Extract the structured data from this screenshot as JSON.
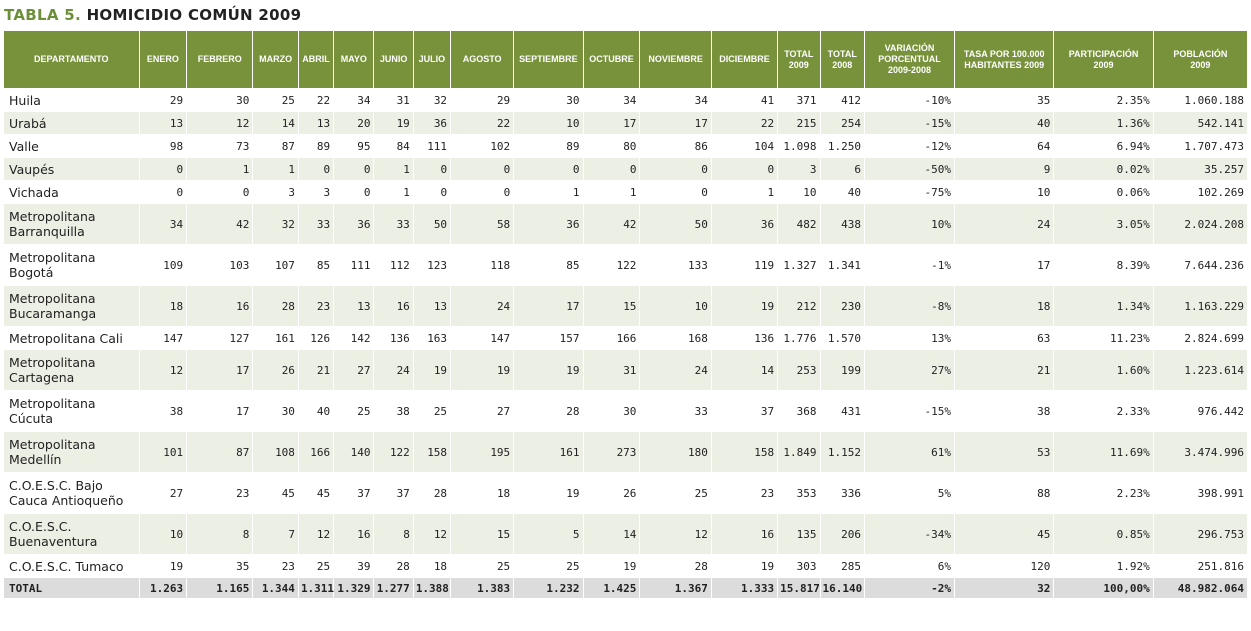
{
  "title": {
    "prefix": "TABLA 5.",
    "name": "HOMICIDIO COMÚN 2009"
  },
  "headers": {
    "departamento": "DEPARTAMENTO",
    "enero": "ENERO",
    "febrero": "FEBRERO",
    "marzo": "MARZO",
    "abril": "ABRIL",
    "mayo": "MAYO",
    "junio": "JUNIO",
    "julio": "JULIO",
    "agosto": "AGOSTO",
    "septiembre": "SEPTIEMBRE",
    "octubre": "OCTUBRE",
    "noviembre": "NOVIEMBRE",
    "diciembre": "DICIEMBRE",
    "total2009_l1": "TOTAL",
    "total2009_l2": "2009",
    "total2008_l1": "TOTAL",
    "total2008_l2": "2008",
    "variacion_l1": "VARIACIÓN",
    "variacion_l2": "PORCENTUAL",
    "variacion_l3": "2009-2008",
    "tasa_l1": "TASA POR 100.000",
    "tasa_l2": "HABITANTES 2009",
    "participacion_l1": "PARTICIPACIÓN",
    "participacion_l2": "2009",
    "poblacion_l1": "POBLACIÓN",
    "poblacion_l2": "2009"
  },
  "rows": [
    {
      "dept": "Huila",
      "v": [
        "29",
        "30",
        "25",
        "22",
        "34",
        "31",
        "32",
        "29",
        "30",
        "34",
        "34",
        "41",
        "371",
        "412",
        "-10%",
        "35",
        "2.35%",
        "1.060.188"
      ]
    },
    {
      "dept": "Urabá",
      "v": [
        "13",
        "12",
        "14",
        "13",
        "20",
        "19",
        "36",
        "22",
        "10",
        "17",
        "17",
        "22",
        "215",
        "254",
        "-15%",
        "40",
        "1.36%",
        "542.141"
      ]
    },
    {
      "dept": "Valle",
      "v": [
        "98",
        "73",
        "87",
        "89",
        "95",
        "84",
        "111",
        "102",
        "89",
        "80",
        "86",
        "104",
        "1.098",
        "1.250",
        "-12%",
        "64",
        "6.94%",
        "1.707.473"
      ]
    },
    {
      "dept": "Vaupés",
      "v": [
        "0",
        "1",
        "1",
        "0",
        "0",
        "1",
        "0",
        "0",
        "0",
        "0",
        "0",
        "0",
        "3",
        "6",
        "-50%",
        "9",
        "0.02%",
        "35.257"
      ]
    },
    {
      "dept": "Vichada",
      "v": [
        "0",
        "0",
        "3",
        "3",
        "0",
        "1",
        "0",
        "0",
        "1",
        "1",
        "0",
        "1",
        "10",
        "40",
        "-75%",
        "10",
        "0.06%",
        "102.269"
      ]
    },
    {
      "dept": "Metropolitana Barranquilla",
      "v": [
        "34",
        "42",
        "32",
        "33",
        "36",
        "33",
        "50",
        "58",
        "36",
        "42",
        "50",
        "36",
        "482",
        "438",
        "10%",
        "24",
        "3.05%",
        "2.024.208"
      ]
    },
    {
      "dept": "Metropolitana Bogotá",
      "v": [
        "109",
        "103",
        "107",
        "85",
        "111",
        "112",
        "123",
        "118",
        "85",
        "122",
        "133",
        "119",
        "1.327",
        "1.341",
        "-1%",
        "17",
        "8.39%",
        "7.644.236"
      ]
    },
    {
      "dept": "Metropolitana Bucaramanga",
      "v": [
        "18",
        "16",
        "28",
        "23",
        "13",
        "16",
        "13",
        "24",
        "17",
        "15",
        "10",
        "19",
        "212",
        "230",
        "-8%",
        "18",
        "1.34%",
        "1.163.229"
      ]
    },
    {
      "dept": "Metropolitana Cali",
      "v": [
        "147",
        "127",
        "161",
        "126",
        "142",
        "136",
        "163",
        "147",
        "157",
        "166",
        "168",
        "136",
        "1.776",
        "1.570",
        "13%",
        "63",
        "11.23%",
        "2.824.699"
      ]
    },
    {
      "dept": "Metropolitana Cartagena",
      "v": [
        "12",
        "17",
        "26",
        "21",
        "27",
        "24",
        "19",
        "19",
        "19",
        "31",
        "24",
        "14",
        "253",
        "199",
        "27%",
        "21",
        "1.60%",
        "1.223.614"
      ]
    },
    {
      "dept": "Metropolitana Cúcuta",
      "v": [
        "38",
        "17",
        "30",
        "40",
        "25",
        "38",
        "25",
        "27",
        "28",
        "30",
        "33",
        "37",
        "368",
        "431",
        "-15%",
        "38",
        "2.33%",
        "976.442"
      ]
    },
    {
      "dept": "Metropolitana Medellín",
      "v": [
        "101",
        "87",
        "108",
        "166",
        "140",
        "122",
        "158",
        "195",
        "161",
        "273",
        "180",
        "158",
        "1.849",
        "1.152",
        "61%",
        "53",
        "11.69%",
        "3.474.996"
      ]
    },
    {
      "dept": "C.O.E.S.C. Bajo Cauca Antioqueño",
      "v": [
        "27",
        "23",
        "45",
        "45",
        "37",
        "37",
        "28",
        "18",
        "19",
        "26",
        "25",
        "23",
        "353",
        "336",
        "5%",
        "88",
        "2.23%",
        "398.991"
      ]
    },
    {
      "dept": "C.O.E.S.C. Buenaventura",
      "v": [
        "10",
        "8",
        "7",
        "12",
        "16",
        "8",
        "12",
        "15",
        "5",
        "14",
        "12",
        "16",
        "135",
        "206",
        "-34%",
        "45",
        "0.85%",
        "296.753"
      ]
    },
    {
      "dept": "C.O.E.S.C. Tumaco",
      "v": [
        "19",
        "35",
        "23",
        "25",
        "39",
        "28",
        "18",
        "25",
        "25",
        "19",
        "28",
        "19",
        "303",
        "285",
        "6%",
        "120",
        "1.92%",
        "251.816"
      ]
    }
  ],
  "total": {
    "label": "TOTAL",
    "v": [
      "1.263",
      "1.165",
      "1.344",
      "1.311",
      "1.329",
      "1.277",
      "1.388",
      "1.383",
      "1.232",
      "1.425",
      "1.367",
      "1.333",
      "15.817",
      "16.140",
      "-2%",
      "32",
      "100,00%",
      "48.982.064"
    ]
  },
  "colors": {
    "header_bg": "#77923b",
    "title_accent": "#6e8f3a",
    "stripe": "#ecefe4",
    "total_bg": "#dcdcdc"
  }
}
